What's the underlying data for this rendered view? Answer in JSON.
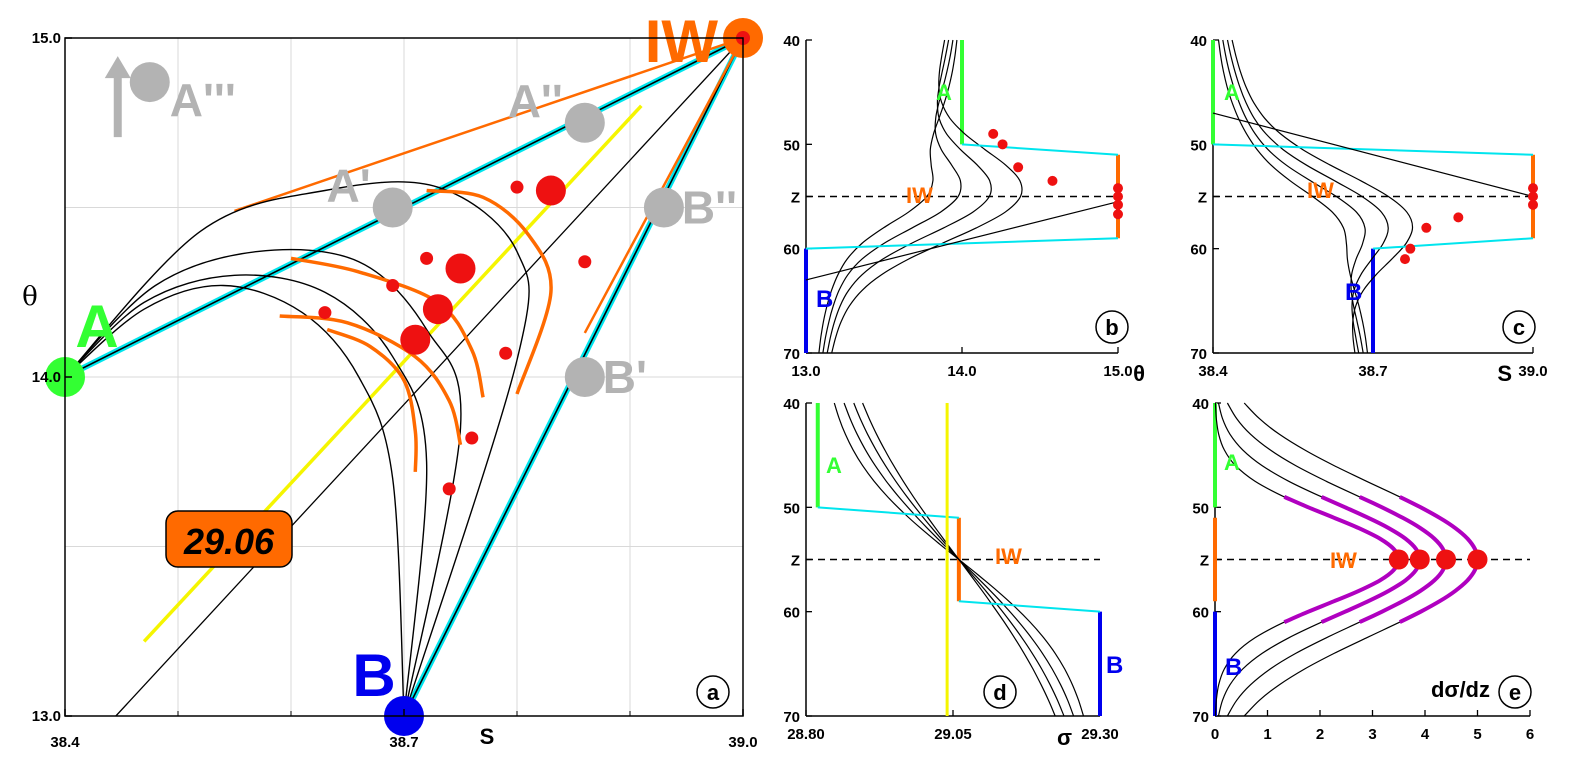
{
  "colors": {
    "grid": "#d9d9d9",
    "mix_line": "#00e5ee",
    "water_iw": "#ff6a00",
    "water_a": "#33ff33",
    "water_b": "#0000ee",
    "isopycnal": "#f5f500",
    "max_point": "#ee1111",
    "ghost": "#b3b3b3",
    "gradient_peak": "#b000c0"
  },
  "panel_a": {
    "letter": "a",
    "xlabel": "S",
    "ylabel": "θ",
    "xlim": [
      38.4,
      39.0
    ],
    "ylim": [
      13.0,
      15.0
    ],
    "xticks": [
      "38.4",
      "38.7",
      "39.0"
    ],
    "yticks": [
      "13.0",
      "14.0",
      "15.0"
    ],
    "water_masses": [
      {
        "label": "A",
        "S": 38.4,
        "theta": 14.0
      },
      {
        "label": "B",
        "S": 38.7,
        "theta": 13.0
      },
      {
        "label": "IW",
        "S": 39.0,
        "theta": 15.0
      }
    ],
    "ghost_points": [
      {
        "label": "A'",
        "S": 38.69,
        "theta": 14.5
      },
      {
        "label": "A''",
        "S": 38.86,
        "theta": 14.75
      },
      {
        "label": "A'''",
        "S": 38.475,
        "theta": 14.87
      },
      {
        "label": "B'",
        "S": 38.86,
        "theta": 14.0
      },
      {
        "label": "B''",
        "S": 38.93,
        "theta": 14.5
      }
    ],
    "density_label": "29.06",
    "sigma_contour_through_IW": [
      [
        38.445,
        13.0
      ],
      [
        39.0,
        15.0
      ]
    ],
    "isopycnal_29_06": [
      [
        38.47,
        13.22
      ],
      [
        38.91,
        14.8
      ]
    ],
    "mixing_curves": [
      [
        [
          38.4,
          14.0
        ],
        [
          38.47,
          14.2
        ],
        [
          38.54,
          14.27
        ],
        [
          38.61,
          14.19
        ],
        [
          38.66,
          14.0
        ],
        [
          38.69,
          13.7
        ],
        [
          38.7,
          13.0
        ]
      ],
      [
        [
          38.4,
          14.0
        ],
        [
          38.47,
          14.22
        ],
        [
          38.55,
          14.3
        ],
        [
          38.63,
          14.25
        ],
        [
          38.69,
          14.06
        ],
        [
          38.72,
          13.75
        ],
        [
          38.7,
          13.0
        ]
      ],
      [
        [
          38.4,
          14.0
        ],
        [
          38.48,
          14.27
        ],
        [
          38.57,
          14.37
        ],
        [
          38.66,
          14.34
        ],
        [
          38.72,
          14.14
        ],
        [
          38.75,
          13.85
        ],
        [
          38.7,
          13.0
        ]
      ],
      [
        [
          38.4,
          14.0
        ],
        [
          38.52,
          14.43
        ],
        [
          38.63,
          14.55
        ],
        [
          38.73,
          14.56
        ],
        [
          38.8,
          14.37
        ],
        [
          38.8,
          14.05
        ],
        [
          38.7,
          13.0
        ]
      ]
    ],
    "max_arcs": [
      [
        [
          38.632,
          14.14
        ],
        [
          38.67,
          14.09
        ],
        [
          38.7,
          13.99
        ],
        [
          38.71,
          13.84
        ],
        [
          38.71,
          13.72
        ]
      ],
      [
        [
          38.59,
          14.18
        ],
        [
          38.65,
          14.16
        ],
        [
          38.71,
          14.06
        ],
        [
          38.74,
          13.93
        ],
        [
          38.75,
          13.8
        ]
      ],
      [
        [
          38.6,
          14.35
        ],
        [
          38.66,
          14.31
        ],
        [
          38.73,
          14.22
        ],
        [
          38.76,
          14.08
        ],
        [
          38.77,
          13.94
        ]
      ],
      [
        [
          38.72,
          14.55
        ],
        [
          38.77,
          14.53
        ],
        [
          38.81,
          14.42
        ],
        [
          38.83,
          14.25
        ],
        [
          38.8,
          13.95
        ]
      ]
    ],
    "max_points_large": [
      [
        38.71,
        14.11
      ],
      [
        38.73,
        14.2
      ],
      [
        38.75,
        14.32
      ],
      [
        38.83,
        14.55
      ]
    ],
    "max_points_small": [
      [
        38.63,
        14.19
      ],
      [
        38.69,
        14.27
      ],
      [
        38.72,
        14.35
      ],
      [
        38.8,
        14.56
      ],
      [
        38.74,
        13.67
      ],
      [
        38.76,
        13.82
      ],
      [
        38.79,
        14.07
      ],
      [
        38.86,
        14.34
      ]
    ]
  },
  "profiles": {
    "ylim": [
      70,
      40
    ],
    "yticks": [
      "40",
      "50",
      "Z",
      "60",
      "70"
    ],
    "z_depth": 55,
    "curves_z": [
      40,
      41.5,
      43,
      44.5,
      46,
      47.5,
      49,
      50.5,
      52,
      53.5,
      55,
      56.5,
      58,
      59.5,
      61,
      62.5,
      64,
      65.5,
      67,
      68.5,
      70
    ],
    "curve_widths": [
      4.5,
      5.5,
      6.5,
      7.5
    ]
  },
  "panel_b": {
    "letter": "b",
    "xlabel": "θ",
    "xlim": [
      13.0,
      15.0
    ],
    "xticks": [
      "13.0",
      "14.0",
      "15.0"
    ],
    "legend": {
      "A": "A",
      "B": "B",
      "IW": "IW"
    },
    "A": {
      "x": 14.0,
      "z": [
        40,
        50
      ]
    },
    "IW": {
      "x": 15.0,
      "z": [
        51,
        59
      ]
    },
    "B": {
      "x": 13.0,
      "z": [
        60,
        70
      ]
    },
    "links": [
      [
        [
          14.0,
          50
        ],
        [
          15.0,
          51
        ]
      ],
      [
        [
          13.0,
          60
        ],
        [
          15.0,
          59
        ]
      ],
      [
        [
          13.0,
          63
        ],
        [
          15.0,
          55.5
        ]
      ]
    ],
    "points": [
      [
        14.2,
        49
      ],
      [
        14.26,
        50
      ],
      [
        14.36,
        52.2
      ],
      [
        14.58,
        53.5
      ],
      [
        15.0,
        54.2
      ],
      [
        15.0,
        55.0
      ],
      [
        15.0,
        55.8
      ],
      [
        15.0,
        56.7
      ]
    ]
  },
  "panel_c": {
    "letter": "c",
    "xlabel": "S",
    "xlim": [
      38.4,
      39.0
    ],
    "xticks": [
      "38.4",
      "38.7",
      "39.0"
    ],
    "legend": {
      "A": "A",
      "B": "B",
      "IW": "IW"
    },
    "A": {
      "x": 38.4,
      "z": [
        40,
        50
      ]
    },
    "IW": {
      "x": 39.0,
      "z": [
        51,
        59
      ]
    },
    "B": {
      "x": 38.7,
      "z": [
        60,
        70
      ]
    },
    "links": [
      [
        [
          38.4,
          50
        ],
        [
          39.0,
          51
        ]
      ],
      [
        [
          38.7,
          60
        ],
        [
          39.0,
          59
        ]
      ],
      [
        [
          38.4,
          47
        ],
        [
          39.0,
          55
        ]
      ]
    ],
    "points": [
      [
        38.76,
        61
      ],
      [
        38.77,
        60
      ],
      [
        38.8,
        58
      ],
      [
        38.86,
        57
      ],
      [
        39.0,
        54.2
      ],
      [
        39.0,
        55.0
      ],
      [
        39.0,
        55.8
      ]
    ]
  },
  "panel_d": {
    "letter": "d",
    "xlabel": "σ",
    "xlim": [
      28.8,
      29.3
    ],
    "xticks": [
      "28.80",
      "29.05",
      "29.30"
    ],
    "legend": {
      "A": "A",
      "B": "B",
      "IW": "IW"
    },
    "isopycnal_x": 29.04,
    "A": {
      "x": 28.82,
      "z": [
        40,
        50
      ]
    },
    "IW": {
      "x": 29.06,
      "z": [
        51,
        59
      ]
    },
    "B": {
      "x": 29.3,
      "z": [
        60,
        70
      ]
    },
    "links": [
      [
        [
          28.82,
          50
        ],
        [
          29.06,
          51
        ]
      ],
      [
        [
          29.06,
          59
        ],
        [
          29.3,
          60
        ]
      ]
    ]
  },
  "panel_e": {
    "letter": "e",
    "xlabel": "dσ/dz",
    "xlim": [
      0,
      6
    ],
    "xticks": [
      "0",
      "1",
      "2",
      "3",
      "4",
      "5",
      "6"
    ],
    "legend": {
      "A": "A",
      "B": "B",
      "IW": "IW"
    },
    "A": {
      "x": 0,
      "z": [
        40,
        50
      ]
    },
    "IW": {
      "x": 0,
      "z": [
        51,
        59
      ]
    },
    "B": {
      "x": 0,
      "z": [
        60,
        70
      ]
    },
    "peak_values": [
      3.5,
      3.9,
      4.4,
      5.0
    ]
  }
}
